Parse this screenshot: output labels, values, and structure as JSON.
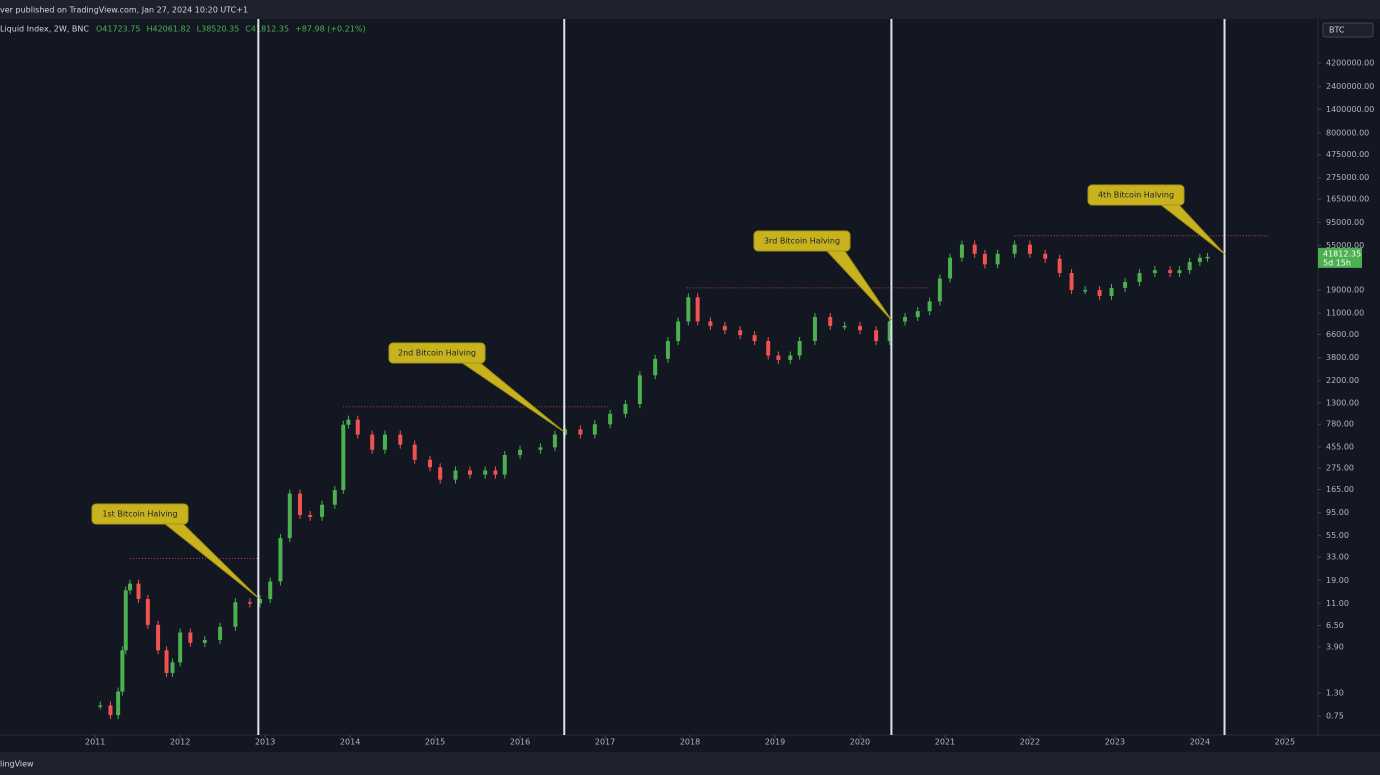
{
  "header": {
    "published": "ver published on TradingView.com, Jan 27, 2024 10:20 UTC+1",
    "symbol": "Liquid Index, 2W, BNC",
    "ohlc": [
      "O41723.75",
      "H42061.82",
      "L38520.35",
      "C41812.35"
    ],
    "change": "+87.98 (+0.21%)"
  },
  "footer": "lingView",
  "chart_data": {
    "type": "candlestick",
    "log_scale": true,
    "grid": false,
    "axis_unit": "BTC",
    "up_color": "#4caf50",
    "down_color": "#ef5350",
    "x": [
      2011.06,
      2011.18,
      2011.27,
      2011.32,
      2011.36,
      2011.41,
      2011.51,
      2011.62,
      2011.74,
      2011.84,
      2011.91,
      2012.0,
      2012.12,
      2012.29,
      2012.47,
      2012.65,
      2012.82,
      2012.94,
      2013.06,
      2013.18,
      2013.29,
      2013.41,
      2013.53,
      2013.67,
      2013.82,
      2013.92,
      2013.98,
      2014.09,
      2014.26,
      2014.41,
      2014.59,
      2014.76,
      2014.94,
      2015.06,
      2015.24,
      2015.41,
      2015.59,
      2015.71,
      2015.82,
      2016.0,
      2016.24,
      2016.41,
      2016.53,
      2016.71,
      2016.88,
      2017.06,
      2017.24,
      2017.41,
      2017.59,
      2017.74,
      2017.86,
      2017.98,
      2018.09,
      2018.24,
      2018.41,
      2018.59,
      2018.76,
      2018.92,
      2019.04,
      2019.18,
      2019.29,
      2019.47,
      2019.65,
      2019.82,
      2020.0,
      2020.19,
      2020.35,
      2020.53,
      2020.68,
      2020.82,
      2020.94,
      2021.06,
      2021.2,
      2021.35,
      2021.47,
      2021.62,
      2021.82,
      2022.0,
      2022.18,
      2022.35,
      2022.49,
      2022.65,
      2022.82,
      2022.96,
      2023.12,
      2023.29,
      2023.47,
      2023.65,
      2023.76,
      2023.88,
      2024.0,
      2024.09
    ],
    "values": [
      0.97,
      0.77,
      1.35,
      3.6,
      15,
      17.6,
      12.2,
      6.6,
      3.6,
      2.1,
      2.7,
      5.5,
      4.3,
      4.6,
      6.3,
      11.3,
      11,
      12.2,
      18.5,
      52,
      150,
      90,
      86,
      115,
      163,
      771,
      870,
      610,
      425,
      610,
      480,
      335,
      280,
      209,
      260,
      235,
      260,
      235,
      375,
      425,
      450,
      610,
      690,
      610,
      780,
      1000,
      1260,
      2500,
      3700,
      5650,
      9000,
      16000,
      9000,
      8100,
      7300,
      6500,
      5650,
      4000,
      3600,
      4000,
      5650,
      10000,
      8100,
      8100,
      7300,
      5650,
      9000,
      10000,
      11500,
      14500,
      25000,
      41000,
      56000,
      45000,
      35000,
      45000,
      56000,
      45000,
      40000,
      28500,
      19000,
      19000,
      16500,
      20000,
      23000,
      28500,
      30500,
      28500,
      30500,
      37000,
      41000,
      41812.35
    ],
    "last_price_label": "41812.35",
    "countdown": "5d 15h",
    "xlim": [
      2009.88,
      2025.39
    ],
    "xticks": [
      2011,
      2012,
      2013,
      2014,
      2015,
      2016,
      2017,
      2018,
      2019,
      2020,
      2021,
      2022,
      2023,
      2024,
      2025
    ],
    "ylim": [
      0.48,
      12000000
    ],
    "yticks": [
      {
        "value": 4200000,
        "label": "4200000.00"
      },
      {
        "value": 2400000,
        "label": "2400000.00"
      },
      {
        "value": 1400000,
        "label": "1400000.00"
      },
      {
        "value": 800000,
        "label": "800000.00"
      },
      {
        "value": 475000,
        "label": "475000.00"
      },
      {
        "value": 275000,
        "label": "275000.00"
      },
      {
        "value": 165000,
        "label": "165000.00"
      },
      {
        "value": 95000,
        "label": "95000.00"
      },
      {
        "value": 55000,
        "label": "55000.00"
      },
      {
        "value": 19000,
        "label": "19000.00"
      },
      {
        "value": 11000,
        "label": "11000.00"
      },
      {
        "value": 6600,
        "label": "6600.00"
      },
      {
        "value": 3800,
        "label": "3800.00"
      },
      {
        "value": 2200,
        "label": "2200.00"
      },
      {
        "value": 1300,
        "label": "1300.00"
      },
      {
        "value": 780,
        "label": "780.00"
      },
      {
        "value": 455,
        "label": "455.00"
      },
      {
        "value": 275,
        "label": "275.00"
      },
      {
        "value": 165,
        "label": "165.00"
      },
      {
        "value": 95,
        "label": "95.00"
      },
      {
        "value": 55,
        "label": "55.00"
      },
      {
        "value": 33,
        "label": "33.00"
      },
      {
        "value": 19,
        "label": "19.00"
      },
      {
        "value": 11,
        "label": "11.00"
      },
      {
        "value": 6.5,
        "label": "6.50"
      },
      {
        "value": 3.9,
        "label": "3.90"
      },
      {
        "value": 1.3,
        "label": "1.30"
      },
      {
        "value": 0.75,
        "label": "0.75"
      }
    ],
    "halvings": [
      {
        "x": 2012.92,
        "label": "1st Bitcoin Halving"
      },
      {
        "x": 2016.52,
        "label": "2nd Bitcoin Halving"
      },
      {
        "x": 2020.37,
        "label": "3rd Bitcoin Halving"
      },
      {
        "x": 2024.29,
        "label": "4th Bitcoin Halving"
      }
    ],
    "ath_lines": [
      {
        "value": 32,
        "x": [
          2011.41,
          2012.92
        ]
      },
      {
        "value": 1180,
        "x": [
          2013.92,
          2017.06
        ]
      },
      {
        "value": 20000,
        "x": [
          2017.96,
          2020.82
        ]
      },
      {
        "value": 69000,
        "x": [
          2021.82,
          2024.8
        ]
      }
    ]
  }
}
